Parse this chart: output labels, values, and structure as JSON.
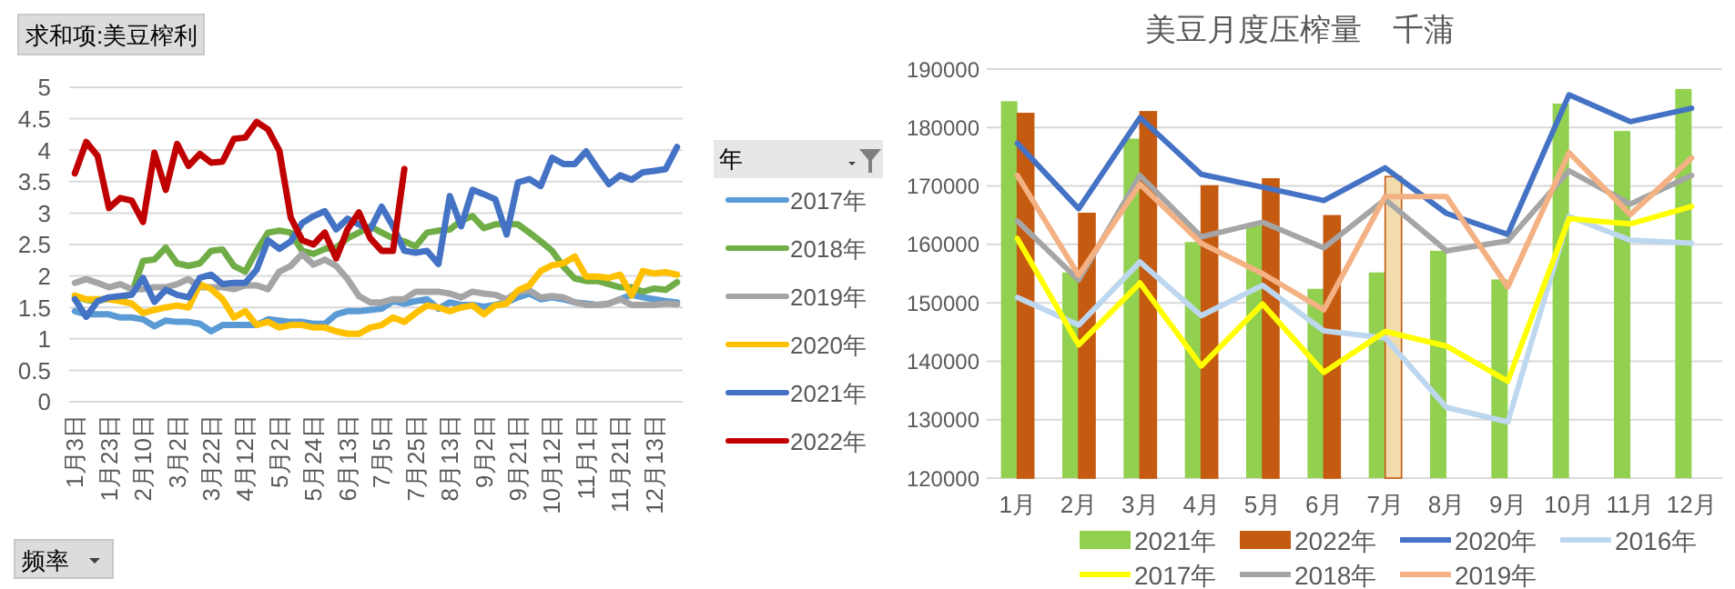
{
  "chart_data": [
    {
      "type": "line",
      "title": "求和项:美豆榨利",
      "xlabel": "频率",
      "legend_title": "年",
      "legend": "right",
      "grid": "y",
      "ylim": [
        0,
        5
      ],
      "yticks": [
        0,
        0.5,
        1,
        1.5,
        2,
        2.5,
        3,
        3.5,
        4,
        4.5,
        5
      ],
      "categories": [
        "1月3日",
        null,
        null,
        "1月23日",
        null,
        null,
        "2月10日",
        null,
        null,
        "3月2日",
        null,
        null,
        "3月22日",
        null,
        null,
        "4月12日",
        null,
        null,
        "5月2日",
        null,
        null,
        "5月24日",
        null,
        null,
        "6月13日",
        null,
        null,
        "7月5日",
        null,
        null,
        "7月25日",
        null,
        null,
        "8月13日",
        null,
        null,
        "9月2日",
        null,
        null,
        "9月21日",
        null,
        null,
        "10月12日",
        null,
        null,
        "11月1日",
        null,
        null,
        "11月21日",
        null,
        null,
        "12月13日",
        null,
        null
      ],
      "series": [
        {
          "name": "2017年",
          "color": "#5b9bd5",
          "values": [
            1.44,
            1.39,
            1.39,
            1.39,
            1.34,
            1.34,
            1.31,
            1.2,
            1.29,
            1.27,
            1.27,
            1.24,
            1.12,
            1.22,
            1.22,
            1.22,
            1.22,
            1.31,
            1.29,
            1.27,
            1.27,
            1.24,
            1.24,
            1.39,
            1.44,
            1.44,
            1.46,
            1.48,
            1.6,
            1.56,
            1.6,
            1.63,
            1.48,
            1.58,
            1.54,
            1.54,
            1.51,
            1.54,
            1.58,
            1.66,
            1.72,
            1.63,
            1.66,
            1.63,
            1.58,
            1.56,
            1.54,
            1.56,
            1.63,
            1.7,
            1.66,
            1.63,
            1.6,
            1.58
          ]
        },
        {
          "name": "2018年",
          "color": "#70ad47",
          "values": [
            1.68,
            1.62,
            1.6,
            1.65,
            1.65,
            1.72,
            2.24,
            2.26,
            2.45,
            2.2,
            2.16,
            2.2,
            2.4,
            2.42,
            2.16,
            2.07,
            2.4,
            2.69,
            2.72,
            2.69,
            2.4,
            2.35,
            2.43,
            2.45,
            2.6,
            2.69,
            2.79,
            2.69,
            2.6,
            2.55,
            2.47,
            2.69,
            2.72,
            2.74,
            2.88,
            2.95,
            2.76,
            2.82,
            2.82,
            2.82,
            2.69,
            2.55,
            2.4,
            2.15,
            1.96,
            1.92,
            1.92,
            1.87,
            1.82,
            1.82,
            1.75,
            1.8,
            1.78,
            1.9
          ]
        },
        {
          "name": "2019年",
          "color": "#a5a5a5",
          "values": [
            1.89,
            1.95,
            1.89,
            1.82,
            1.87,
            1.79,
            1.79,
            1.82,
            1.82,
            1.87,
            1.95,
            1.82,
            1.82,
            1.82,
            1.79,
            1.85,
            1.85,
            1.79,
            2.07,
            2.16,
            2.35,
            2.18,
            2.26,
            2.16,
            1.95,
            1.68,
            1.58,
            1.58,
            1.63,
            1.63,
            1.75,
            1.75,
            1.75,
            1.72,
            1.66,
            1.75,
            1.72,
            1.7,
            1.63,
            1.75,
            1.77,
            1.66,
            1.68,
            1.66,
            1.58,
            1.54,
            1.54,
            1.56,
            1.63,
            1.54,
            1.54,
            1.54,
            1.56,
            1.55
          ]
        },
        {
          "name": "2020年",
          "color": "#ffc000",
          "values": [
            1.69,
            1.63,
            1.63,
            1.63,
            1.6,
            1.56,
            1.41,
            1.46,
            1.5,
            1.53,
            1.5,
            1.87,
            1.79,
            1.63,
            1.34,
            1.44,
            1.22,
            1.27,
            1.18,
            1.22,
            1.22,
            1.18,
            1.18,
            1.12,
            1.08,
            1.08,
            1.18,
            1.22,
            1.34,
            1.27,
            1.41,
            1.53,
            1.5,
            1.44,
            1.5,
            1.53,
            1.39,
            1.53,
            1.56,
            1.77,
            1.85,
            2.08,
            2.17,
            2.2,
            2.31,
            1.99,
            1.99,
            1.97,
            2.02,
            1.69,
            2.08,
            2.04,
            2.06,
            2.02
          ]
        },
        {
          "name": "2021年",
          "color": "#4472c4",
          "values": [
            1.63,
            1.35,
            1.6,
            1.66,
            1.68,
            1.7,
            1.97,
            1.59,
            1.78,
            1.7,
            1.66,
            1.97,
            2.02,
            1.87,
            1.89,
            1.89,
            2.1,
            2.57,
            2.43,
            2.55,
            2.84,
            2.95,
            3.03,
            2.74,
            2.91,
            2.82,
            2.74,
            3.1,
            2.79,
            2.4,
            2.37,
            2.4,
            2.19,
            3.27,
            2.79,
            3.37,
            3.3,
            3.22,
            2.66,
            3.49,
            3.54,
            3.43,
            3.88,
            3.78,
            3.78,
            3.98,
            3.71,
            3.46,
            3.6,
            3.53,
            3.65,
            3.67,
            3.7,
            4.05
          ]
        },
        {
          "name": "2022年",
          "color": "#c00000",
          "values": [
            3.63,
            4.13,
            3.91,
            3.08,
            3.24,
            3.2,
            2.86,
            3.96,
            3.37,
            4.1,
            3.75,
            3.94,
            3.8,
            3.82,
            4.18,
            4.2,
            4.45,
            4.33,
            3.99,
            2.93,
            2.57,
            2.5,
            2.69,
            2.28,
            2.74,
            3.01,
            2.6,
            2.4,
            2.4,
            3.7,
            null,
            null,
            null,
            null,
            null,
            null,
            null,
            null,
            null,
            null,
            null,
            null,
            null,
            null,
            null,
            null,
            null,
            null,
            null,
            null,
            null,
            null,
            null,
            null
          ]
        }
      ]
    },
    {
      "type": "bar",
      "title": "美豆月度压榨量　千蒲",
      "legend": "bottom",
      "grid": "y",
      "ylim": [
        120000,
        190000
      ],
      "yticks": [
        120000,
        130000,
        140000,
        150000,
        160000,
        170000,
        180000,
        190000
      ],
      "categories": [
        "1月",
        "2月",
        "3月",
        "4月",
        "5月",
        "6月",
        "7月",
        "8月",
        "9月",
        "10月",
        "11月",
        "12月"
      ],
      "series": [
        {
          "name": "2021年",
          "color": "#92d050",
          "values": [
            184500,
            155200,
            178100,
            160400,
            163300,
            152400,
            155200,
            158900,
            154000,
            184100,
            179400,
            186600
          ]
        },
        {
          "name": "2022年",
          "color": "#c55a11",
          "colors": [
            "#c55a11",
            "#c55a11",
            "#c55a11",
            "#c55a11",
            "#c55a11",
            "#c55a11",
            "#f2dcae",
            null,
            null,
            null,
            null,
            null
          ],
          "values": [
            182400,
            165300,
            182700,
            170000,
            171200,
            164900,
            171600,
            null,
            null,
            null,
            null,
            null
          ]
        },
        {
          "name": "2020年",
          "type": "line",
          "color": "#4472c4",
          "values": [
            177300,
            166100,
            181700,
            172000,
            169800,
            167500,
            173100,
            165300,
            161700,
            185600,
            181000,
            183300
          ]
        },
        {
          "name": "2016年",
          "type": "line",
          "color": "#bdd7ee",
          "values": [
            150900,
            146200,
            157000,
            147800,
            153000,
            145200,
            144000,
            132100,
            129600,
            164800,
            160700,
            160200
          ]
        },
        {
          "name": "2017年",
          "type": "line",
          "color": "#ffff00",
          "values": [
            161000,
            142800,
            153400,
            139200,
            149800,
            138100,
            145100,
            142600,
            136600,
            164400,
            163500,
            166500
          ]
        },
        {
          "name": "2018年",
          "type": "line",
          "color": "#a5a5a5",
          "values": [
            164000,
            153900,
            171800,
            161300,
            163800,
            159400,
            167700,
            158900,
            160600,
            172600,
            166900,
            171800
          ]
        },
        {
          "name": "2019年",
          "type": "line",
          "color": "#f4b183",
          "values": [
            171800,
            154700,
            170300,
            160200,
            155000,
            148800,
            168200,
            168200,
            152700,
            175700,
            165100,
            174800
          ]
        }
      ]
    }
  ]
}
